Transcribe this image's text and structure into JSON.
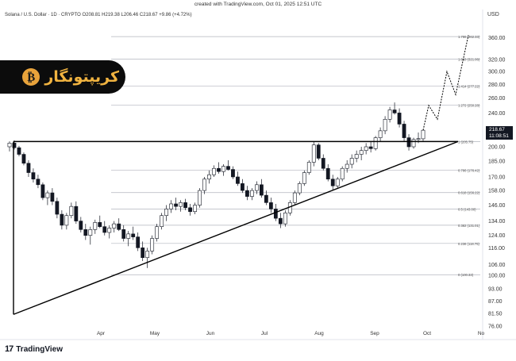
{
  "header": {
    "created_text": "created with TradingView.com, Oct 01, 2025 12:51 UTC",
    "symbol_text": "Solana / U.S. Dollar · 1D · CRYPTO",
    "ohlc_text": "O208.81  H219.38  L206.46  C218.67  +9.86 (+4.72%)",
    "currency": "USD"
  },
  "badge": {
    "coin_glyph": "₿",
    "text": "کریپتونگار"
  },
  "footer": {
    "logo_mark": "17",
    "logo_text": "TradingView"
  },
  "price_tag": {
    "price": "218.67",
    "countdown": "11:08:51"
  },
  "colors": {
    "up": "#131722",
    "down": "#131722",
    "line": "#000000",
    "fib": "#b2b5be"
  },
  "chart_data": {
    "type": "candlestick",
    "x_axis_labels": [
      "Apr",
      "May",
      "Jun",
      "Jul",
      "Aug",
      "Sep",
      "Oct",
      "No"
    ],
    "y_axis": {
      "ticks": [
        360.0,
        320.0,
        300.0,
        280.0,
        260.0,
        240.0,
        220.0,
        200.0,
        185.0,
        170.0,
        158.0,
        146.0,
        134.0,
        124.0,
        116.0,
        106.0,
        100.0,
        93.0,
        87.0,
        81.5,
        76.0
      ],
      "scale": "log"
    },
    "fib_levels": [
      {
        "label": "1.786 (362.33)",
        "value": 362.33
      },
      {
        "label": "1.618 (321.06)",
        "value": 321.06
      },
      {
        "label": "1.414 (277.22)",
        "value": 277.22
      },
      {
        "label": "1.272 (250.28)",
        "value": 250.28
      },
      {
        "label": "1 (205.75)",
        "value": 205.75
      },
      {
        "label": "0.786 (176.42)",
        "value": 176.42
      },
      {
        "label": "0.618 (156.22)",
        "value": 156.22
      },
      {
        "label": "0.5 (143.00)",
        "value": 143.0
      },
      {
        "label": "0.382 (131.01)",
        "value": 131.01
      },
      {
        "label": "0.236 (118.75)",
        "value": 118.75
      },
      {
        "label": "0 (100.33)",
        "value": 100.33
      }
    ],
    "triangle": {
      "top_price": 205.75,
      "support_start": 81.0,
      "support_end": 205.75
    },
    "projection": [
      218.67,
      250,
      232,
      300,
      265,
      365
    ],
    "candles": [
      [
        200,
        206,
        195,
        204
      ],
      [
        204,
        207,
        197,
        199
      ],
      [
        199,
        201,
        190,
        192
      ],
      [
        192,
        194,
        181,
        183
      ],
      [
        183,
        186,
        170,
        174
      ],
      [
        174,
        178,
        165,
        168
      ],
      [
        168,
        172,
        160,
        163
      ],
      [
        163,
        165,
        150,
        152
      ],
      [
        152,
        158,
        146,
        156
      ],
      [
        156,
        160,
        146,
        149
      ],
      [
        149,
        152,
        136,
        139
      ],
      [
        139,
        142,
        128,
        131
      ],
      [
        131,
        140,
        128,
        138
      ],
      [
        138,
        148,
        136,
        145
      ],
      [
        145,
        149,
        132,
        134
      ],
      [
        134,
        137,
        126,
        128
      ],
      [
        128,
        132,
        121,
        124
      ],
      [
        124,
        130,
        118,
        128
      ],
      [
        128,
        135,
        125,
        133
      ],
      [
        133,
        138,
        129,
        130
      ],
      [
        130,
        134,
        124,
        126
      ],
      [
        126,
        131,
        122,
        129
      ],
      [
        129,
        134,
        126,
        132
      ],
      [
        132,
        136,
        127,
        128
      ],
      [
        128,
        131,
        120,
        122
      ],
      [
        122,
        127,
        117,
        125
      ],
      [
        125,
        130,
        121,
        123
      ],
      [
        123,
        126,
        114,
        116
      ],
      [
        116,
        120,
        108,
        110
      ],
      [
        110,
        116,
        104,
        114
      ],
      [
        114,
        124,
        112,
        122
      ],
      [
        122,
        132,
        120,
        130
      ],
      [
        130,
        140,
        128,
        138
      ],
      [
        138,
        146,
        134,
        143
      ],
      [
        143,
        150,
        140,
        147
      ],
      [
        147,
        152,
        142,
        145
      ],
      [
        145,
        150,
        141,
        148
      ],
      [
        148,
        151,
        142,
        144
      ],
      [
        144,
        147,
        138,
        141
      ],
      [
        141,
        148,
        139,
        146
      ],
      [
        146,
        160,
        144,
        158
      ],
      [
        158,
        170,
        155,
        168
      ],
      [
        168,
        176,
        164,
        172
      ],
      [
        172,
        181,
        170,
        178
      ],
      [
        178,
        184,
        173,
        175
      ],
      [
        175,
        182,
        171,
        180
      ],
      [
        180,
        186,
        176,
        177
      ],
      [
        177,
        180,
        168,
        170
      ],
      [
        170,
        175,
        162,
        164
      ],
      [
        164,
        168,
        156,
        158
      ],
      [
        158,
        162,
        150,
        153
      ],
      [
        153,
        160,
        150,
        158
      ],
      [
        158,
        166,
        155,
        163
      ],
      [
        163,
        168,
        152,
        154
      ],
      [
        154,
        158,
        146,
        148
      ],
      [
        148,
        152,
        140,
        143
      ],
      [
        143,
        147,
        134,
        136
      ],
      [
        136,
        140,
        129,
        132
      ],
      [
        132,
        142,
        130,
        140
      ],
      [
        140,
        150,
        138,
        148
      ],
      [
        148,
        158,
        146,
        156
      ],
      [
        156,
        166,
        154,
        164
      ],
      [
        164,
        176,
        162,
        174
      ],
      [
        174,
        186,
        172,
        184
      ],
      [
        184,
        206,
        180,
        202
      ],
      [
        202,
        204,
        186,
        188
      ],
      [
        188,
        192,
        176,
        178
      ],
      [
        178,
        182,
        166,
        168
      ],
      [
        168,
        172,
        158,
        162
      ],
      [
        162,
        170,
        160,
        168
      ],
      [
        168,
        180,
        166,
        178
      ],
      [
        178,
        186,
        174,
        182
      ],
      [
        182,
        192,
        178,
        188
      ],
      [
        188,
        196,
        184,
        192
      ],
      [
        192,
        200,
        186,
        196
      ],
      [
        196,
        204,
        192,
        200
      ],
      [
        200,
        206,
        194,
        198
      ],
      [
        198,
        212,
        196,
        210
      ],
      [
        210,
        222,
        206,
        218
      ],
      [
        218,
        236,
        214,
        232
      ],
      [
        232,
        248,
        228,
        244
      ],
      [
        244,
        254,
        238,
        240
      ],
      [
        240,
        246,
        222,
        226
      ],
      [
        226,
        230,
        206,
        210
      ],
      [
        210,
        214,
        196,
        200
      ],
      [
        200,
        210,
        198,
        208
      ],
      [
        208,
        216,
        204,
        209
      ],
      [
        208.81,
        219.38,
        206.46,
        218.67
      ]
    ]
  }
}
